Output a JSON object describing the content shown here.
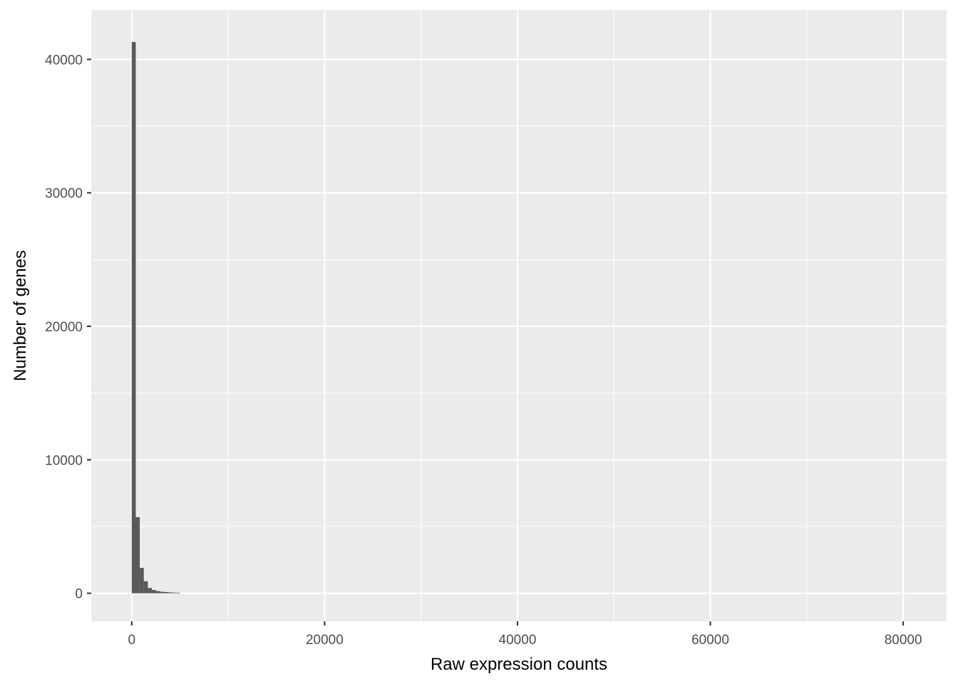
{
  "chart_data": {
    "type": "bar",
    "xlabel": "Raw expression counts",
    "ylabel": "Number of genes",
    "xlim": [
      -4200,
      84500
    ],
    "ylim": [
      -2100,
      43700
    ],
    "x_ticks": [
      0,
      20000,
      40000,
      60000,
      80000
    ],
    "x_tick_labels": [
      "0",
      "20000",
      "40000",
      "60000",
      "80000"
    ],
    "y_ticks": [
      0,
      10000,
      20000,
      30000,
      40000
    ],
    "y_tick_labels": [
      "0",
      "10000",
      "20000",
      "30000",
      "40000"
    ],
    "grid": true,
    "bin_width": 417,
    "bins": [
      {
        "x": 0,
        "count": 41300
      },
      {
        "x": 417,
        "count": 5700
      },
      {
        "x": 834,
        "count": 1900
      },
      {
        "x": 1251,
        "count": 900
      },
      {
        "x": 1668,
        "count": 400
      },
      {
        "x": 2085,
        "count": 250
      },
      {
        "x": 2502,
        "count": 170
      },
      {
        "x": 2919,
        "count": 120
      },
      {
        "x": 3336,
        "count": 90
      },
      {
        "x": 3753,
        "count": 70
      },
      {
        "x": 4170,
        "count": 50
      },
      {
        "x": 4587,
        "count": 40
      }
    ],
    "colors": {
      "panel": "#ebebeb",
      "grid": "#ffffff",
      "bar": "#595959"
    }
  }
}
